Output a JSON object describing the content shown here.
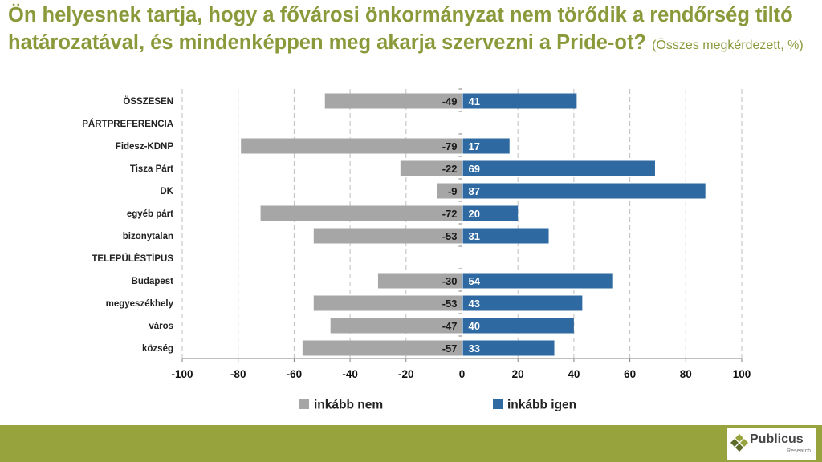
{
  "title": {
    "main": "Ön helyesnek tartja, hogy a fővárosi önkormányzat nem törődik a rendőrség tiltó határozatával, és mindenképpen meg akarja szervezni a Pride-ot?",
    "subtitle": "(Összes megkérdezett, %)"
  },
  "colors": {
    "nem": "#a6a6a6",
    "igen": "#2e6aa1",
    "accent": "#8a9a3b",
    "footer": "#97a33d"
  },
  "chart_data": {
    "type": "bar",
    "orientation": "horizontal",
    "stacked": "diverging",
    "categories": [
      "ÖSSZESEN",
      "PÁRTPREFERENCIA",
      "Fidesz-KDNP",
      "Tisza Párt",
      "DK",
      "egyéb párt",
      "bizonytalan",
      "TELEPÜLÉSTÍPUS",
      "Budapest",
      "megyeszékhely",
      "város",
      "község"
    ],
    "section_headers": [
      "PÁRTPREFERENCIA",
      "TELEPÜLÉSTÍPUS"
    ],
    "series": [
      {
        "name": "inkább nem",
        "values": [
          -49,
          null,
          -79,
          -22,
          -9,
          -72,
          -53,
          null,
          -30,
          -53,
          -47,
          -57
        ]
      },
      {
        "name": "inkább igen",
        "values": [
          41,
          null,
          17,
          69,
          87,
          20,
          31,
          null,
          54,
          43,
          40,
          33
        ]
      }
    ],
    "xlim": [
      -100,
      100
    ],
    "xticks": [
      -100,
      -80,
      -60,
      -40,
      -20,
      0,
      20,
      40,
      60,
      80,
      100
    ],
    "grid": "vertical dashed",
    "legend": "bottom-center"
  },
  "logo": {
    "name": "Publicus",
    "sub": "Research"
  }
}
